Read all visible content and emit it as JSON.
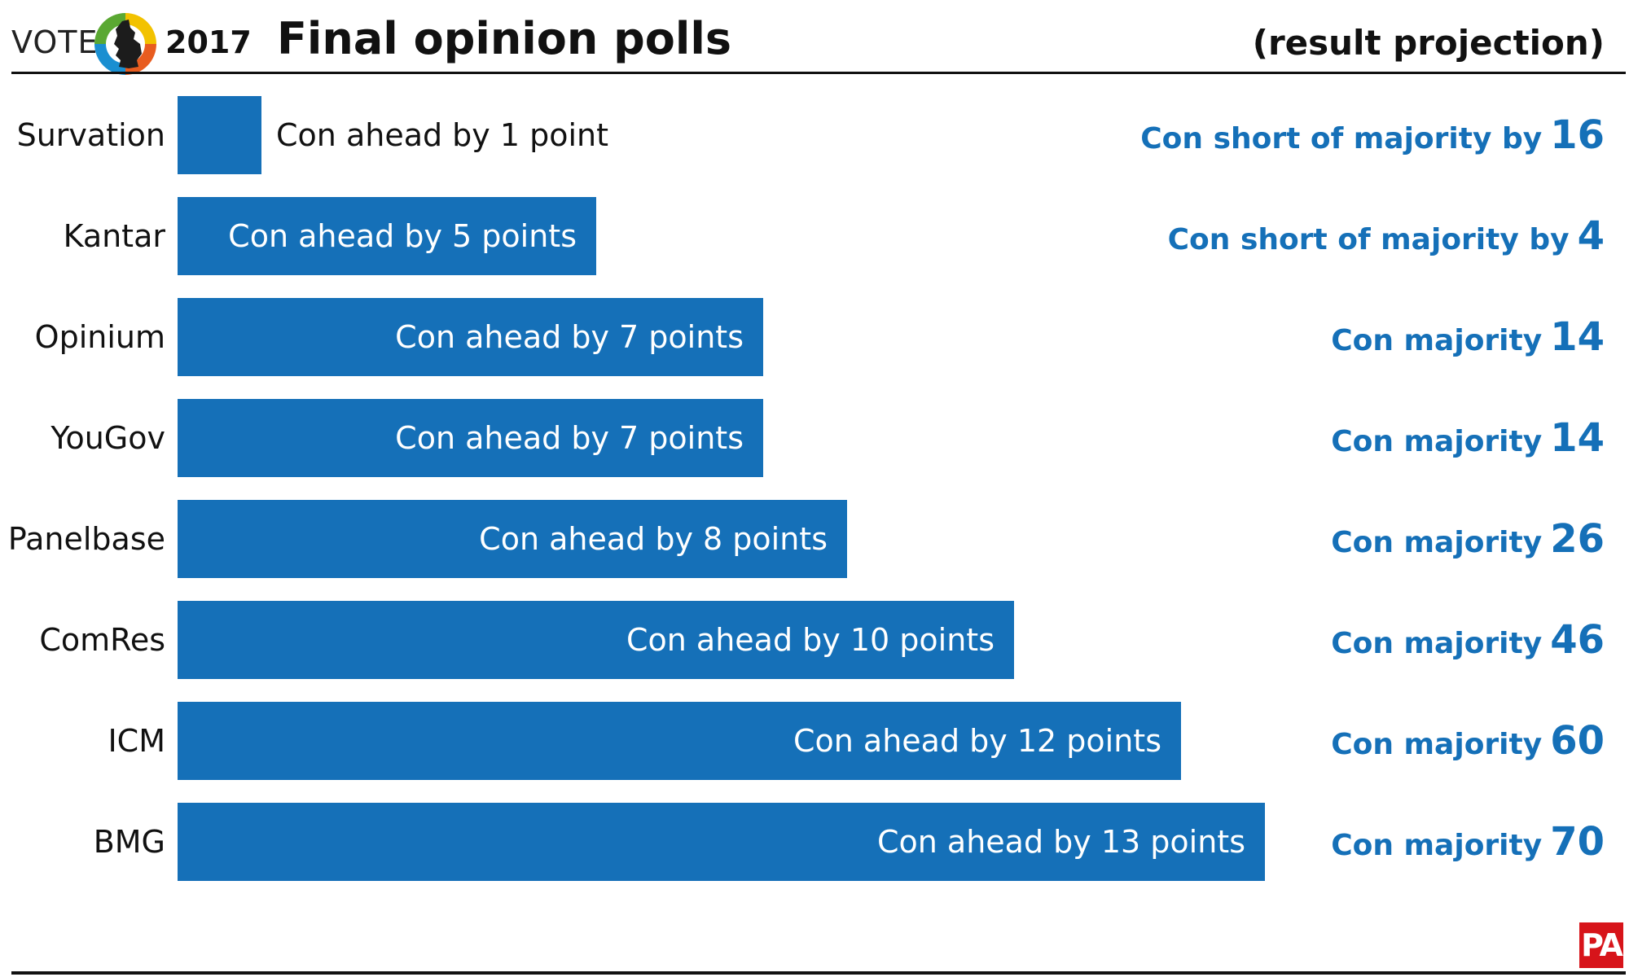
{
  "header": {
    "vote_word": "VOTE",
    "vote_year": "2017",
    "title": "Final opinion polls",
    "subtitle": "(result projection)"
  },
  "footer": {
    "logo_text": "PA"
  },
  "colors": {
    "bar": "#1570b8",
    "projection_text": "#1570b8",
    "text": "#111111",
    "pa_red": "#d7141a"
  },
  "chart_data": {
    "type": "bar",
    "orientation": "horizontal",
    "title": "Final opinion polls",
    "subtitle": "(result projection)",
    "xlim": [
      0,
      13
    ],
    "categories": [
      "Survation",
      "Kantar",
      "Opinium",
      "YouGov",
      "Panelbase",
      "ComRes",
      "ICM",
      "BMG"
    ],
    "values": [
      1,
      5,
      7,
      7,
      8,
      10,
      12,
      13
    ],
    "bar_labels": [
      "Con ahead by 1 point",
      "Con ahead by 5 points",
      "Con ahead by 7 points",
      "Con ahead by 7 points",
      "Con ahead by 8 points",
      "Con ahead by 10 points",
      "Con ahead by 12 points",
      "Con ahead by 13 points"
    ],
    "projections": [
      {
        "text": "Con short of majority by",
        "number": "16"
      },
      {
        "text": "Con short of majority by",
        "number": "4"
      },
      {
        "text": "Con majority",
        "number": "14"
      },
      {
        "text": "Con majority",
        "number": "14"
      },
      {
        "text": "Con majority",
        "number": "26"
      },
      {
        "text": "Con majority",
        "number": "46"
      },
      {
        "text": "Con majority",
        "number": "60"
      },
      {
        "text": "Con majority",
        "number": "70"
      }
    ]
  }
}
